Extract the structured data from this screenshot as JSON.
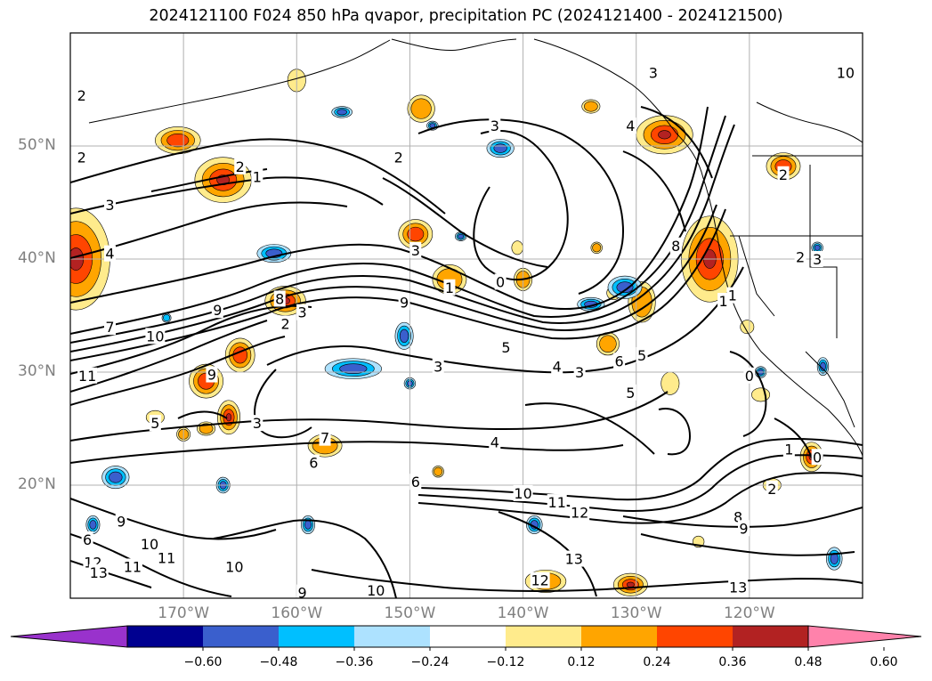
{
  "title": "2024121100 F024 850 hPa qvapor, precipitation PC (2024121400 - 2024121500)",
  "map": {
    "lat_labels": [
      {
        "text": "50°N",
        "lat": 50
      },
      {
        "text": "40°N",
        "lat": 40
      },
      {
        "text": "30°N",
        "lat": 30
      },
      {
        "text": "20°N",
        "lat": 20
      }
    ],
    "lon_labels": [
      {
        "text": "170°W",
        "lon": -170
      },
      {
        "text": "160°W",
        "lon": -160
      },
      {
        "text": "150°W",
        "lon": -150
      },
      {
        "text": "140°W",
        "lon": -140
      },
      {
        "text": "130°W",
        "lon": -130
      },
      {
        "text": "120°W",
        "lon": -120
      }
    ],
    "contour_labels": [
      {
        "t": "3",
        "lon": -128.5,
        "lat": 56.5
      },
      {
        "t": "10",
        "lon": -111.5,
        "lat": 56.5
      },
      {
        "t": "2",
        "lon": -179,
        "lat": 54.5
      },
      {
        "t": "3",
        "lon": -142.5,
        "lat": 51.8
      },
      {
        "t": "4",
        "lon": -130.5,
        "lat": 51.8
      },
      {
        "t": "2",
        "lon": -179,
        "lat": 49
      },
      {
        "t": "2",
        "lon": -165,
        "lat": 48.2
      },
      {
        "t": "1",
        "lon": -163.5,
        "lat": 47.3
      },
      {
        "t": "2",
        "lon": -151,
        "lat": 49
      },
      {
        "t": "2",
        "lon": -117,
        "lat": 47.5
      },
      {
        "t": "3",
        "lon": -176.5,
        "lat": 44.8
      },
      {
        "t": "4",
        "lon": -176.5,
        "lat": 40.5
      },
      {
        "t": "2",
        "lon": -115.5,
        "lat": 40.2
      },
      {
        "t": "3",
        "lon": -114,
        "lat": 40
      },
      {
        "t": "3",
        "lon": -149.5,
        "lat": 40.8
      },
      {
        "t": "1",
        "lon": -146.5,
        "lat": 37.5
      },
      {
        "t": "0",
        "lon": -142,
        "lat": 38
      },
      {
        "t": "8",
        "lon": -126.5,
        "lat": 41.2
      },
      {
        "t": "1",
        "lon": -121.5,
        "lat": 36.8
      },
      {
        "t": "1",
        "lon": -122.3,
        "lat": 36.3
      },
      {
        "t": "9",
        "lon": -167,
        "lat": 35.5
      },
      {
        "t": "8",
        "lon": -161.5,
        "lat": 36.5
      },
      {
        "t": "3",
        "lon": -159.5,
        "lat": 35.3
      },
      {
        "t": "9",
        "lon": -150.5,
        "lat": 36.2
      },
      {
        "t": "7",
        "lon": -176.5,
        "lat": 34
      },
      {
        "t": "10",
        "lon": -172.5,
        "lat": 33.2
      },
      {
        "t": "2",
        "lon": -161,
        "lat": 34.3
      },
      {
        "t": "5",
        "lon": -141.5,
        "lat": 32.2
      },
      {
        "t": "3",
        "lon": -147.5,
        "lat": 30.5
      },
      {
        "t": "4",
        "lon": -137,
        "lat": 30.5
      },
      {
        "t": "3",
        "lon": -135,
        "lat": 30
      },
      {
        "t": "6",
        "lon": -131.5,
        "lat": 31
      },
      {
        "t": "5",
        "lon": -129.5,
        "lat": 31.5
      },
      {
        "t": "5",
        "lon": -130.5,
        "lat": 28.2
      },
      {
        "t": "0",
        "lon": -120,
        "lat": 29.7
      },
      {
        "t": "11",
        "lon": -178.5,
        "lat": 29.7
      },
      {
        "t": "9",
        "lon": -167.5,
        "lat": 29.8
      },
      {
        "t": "3",
        "lon": -163.5,
        "lat": 25.5
      },
      {
        "t": "5",
        "lon": -172.5,
        "lat": 25.5
      },
      {
        "t": "7",
        "lon": -157.5,
        "lat": 24.2
      },
      {
        "t": "4",
        "lon": -142.5,
        "lat": 23.8
      },
      {
        "t": "6",
        "lon": -158.5,
        "lat": 22
      },
      {
        "t": "6",
        "lon": -149.5,
        "lat": 20.3
      },
      {
        "t": "1",
        "lon": -116.5,
        "lat": 23.2
      },
      {
        "t": "0",
        "lon": -114,
        "lat": 22.5
      },
      {
        "t": "10",
        "lon": -140,
        "lat": 19.3
      },
      {
        "t": "11",
        "lon": -137,
        "lat": 18.5
      },
      {
        "t": "12",
        "lon": -135,
        "lat": 17.6
      },
      {
        "t": "8",
        "lon": -121,
        "lat": 17.2
      },
      {
        "t": "9",
        "lon": -120.5,
        "lat": 16.2
      },
      {
        "t": "2",
        "lon": -118,
        "lat": 19.7
      },
      {
        "t": "9",
        "lon": -175.5,
        "lat": 16.8
      },
      {
        "t": "10",
        "lon": -173,
        "lat": 14.8
      },
      {
        "t": "11",
        "lon": -171.5,
        "lat": 13.6
      },
      {
        "t": "11",
        "lon": -174.5,
        "lat": 12.8
      },
      {
        "t": "12",
        "lon": -178,
        "lat": 13.2
      },
      {
        "t": "13",
        "lon": -177.5,
        "lat": 12.3
      },
      {
        "t": "10",
        "lon": -165.5,
        "lat": 12.8
      },
      {
        "t": "13",
        "lon": -135.5,
        "lat": 13.5
      },
      {
        "t": "12",
        "lon": -138.5,
        "lat": 11.6
      },
      {
        "t": "10",
        "lon": -153,
        "lat": 10.7
      },
      {
        "t": "9",
        "lon": -159.5,
        "lat": 10.5
      },
      {
        "t": "13",
        "lon": -121,
        "lat": 11
      },
      {
        "t": "6",
        "lon": -178.5,
        "lat": 15.2
      }
    ],
    "precip_blobs": [
      {
        "lon": -179.5,
        "lat": 40,
        "rx": 3,
        "ry": 4.5,
        "lvl": 4
      },
      {
        "lon": -166.5,
        "lat": 47,
        "rx": 2.5,
        "ry": 2,
        "lvl": 4
      },
      {
        "lon": -170.5,
        "lat": 50.5,
        "rx": 2,
        "ry": 1.2,
        "lvl": 3
      },
      {
        "lon": -149,
        "lat": 53.3,
        "rx": 1.2,
        "ry": 1.2,
        "lvl": 2
      },
      {
        "lon": -160,
        "lat": 55.8,
        "rx": 0.8,
        "ry": 1,
        "lvl": 1
      },
      {
        "lon": -149.5,
        "lat": 42.2,
        "rx": 1.5,
        "ry": 1.3,
        "lvl": 3
      },
      {
        "lon": -146.5,
        "lat": 38.2,
        "rx": 1.5,
        "ry": 1.3,
        "lvl": 2
      },
      {
        "lon": -140,
        "lat": 38.2,
        "rx": 0.8,
        "ry": 1,
        "lvl": 2
      },
      {
        "lon": -161,
        "lat": 36.3,
        "rx": 1.8,
        "ry": 1.3,
        "lvl": 4
      },
      {
        "lon": -165,
        "lat": 31.5,
        "rx": 1.3,
        "ry": 1.5,
        "lvl": 3
      },
      {
        "lon": -168,
        "lat": 29.2,
        "rx": 1.5,
        "ry": 1.5,
        "lvl": 3
      },
      {
        "lon": -166,
        "lat": 26,
        "rx": 1,
        "ry": 1.5,
        "lvl": 4
      },
      {
        "lon": -157.5,
        "lat": 23.5,
        "rx": 1.5,
        "ry": 1,
        "lvl": 2
      },
      {
        "lon": -123.5,
        "lat": 40,
        "rx": 2.5,
        "ry": 3.8,
        "lvl": 4
      },
      {
        "lon": -127.5,
        "lat": 51,
        "rx": 2.5,
        "ry": 1.7,
        "lvl": 4
      },
      {
        "lon": -117,
        "lat": 48.2,
        "rx": 1.5,
        "ry": 1.2,
        "lvl": 3
      },
      {
        "lon": -132.5,
        "lat": 32.5,
        "rx": 1,
        "ry": 1,
        "lvl": 2
      },
      {
        "lon": -129.5,
        "lat": 36.2,
        "rx": 1.2,
        "ry": 1.8,
        "lvl": 2
      },
      {
        "lon": -114.5,
        "lat": 22.5,
        "rx": 1,
        "ry": 1.3,
        "lvl": 4
      },
      {
        "lon": -130.5,
        "lat": 11.2,
        "rx": 1.5,
        "ry": 1,
        "lvl": 4
      },
      {
        "lon": -138,
        "lat": 11.5,
        "rx": 1.8,
        "ry": 1,
        "lvl": 2
      },
      {
        "lon": -127,
        "lat": 29,
        "rx": 0.8,
        "ry": 1,
        "lvl": 1
      },
      {
        "lon": -168,
        "lat": 25,
        "rx": 0.8,
        "ry": 0.6,
        "lvl": 2
      },
      {
        "lon": -172.5,
        "lat": 26,
        "rx": 0.8,
        "ry": 0.6,
        "lvl": 1
      },
      {
        "lon": -119,
        "lat": 28,
        "rx": 0.8,
        "ry": 0.6,
        "lvl": 1
      },
      {
        "lon": -118,
        "lat": 20,
        "rx": 0.8,
        "ry": 0.6,
        "lvl": 1
      },
      {
        "lon": -124.5,
        "lat": 15,
        "rx": 0.5,
        "ry": 0.5,
        "lvl": 1
      },
      {
        "lon": -140.5,
        "lat": 41,
        "rx": 0.5,
        "ry": 0.6,
        "lvl": 1
      },
      {
        "lon": -133.5,
        "lat": 41,
        "rx": 0.5,
        "ry": 0.5,
        "lvl": 2
      },
      {
        "lon": -134,
        "lat": 53.5,
        "rx": 0.8,
        "ry": 0.6,
        "lvl": 2
      },
      {
        "lon": -132,
        "lat": 37,
        "rx": 0.6,
        "ry": 0.6,
        "lvl": 1
      },
      {
        "lon": -120.2,
        "lat": 34,
        "rx": 0.6,
        "ry": 0.6,
        "lvl": 1
      },
      {
        "lon": -147.5,
        "lat": 21.2,
        "rx": 0.5,
        "ry": 0.5,
        "lvl": 2
      },
      {
        "lon": -170,
        "lat": 24.5,
        "rx": 0.6,
        "ry": 0.6,
        "lvl": 2
      }
    ],
    "neg_blobs": [
      {
        "lon": -155,
        "lat": 30.3,
        "rx": 2.5,
        "ry": 0.9,
        "lvl": 3
      },
      {
        "lon": -162,
        "lat": 40.5,
        "rx": 1.5,
        "ry": 0.8,
        "lvl": 3
      },
      {
        "lon": -142,
        "lat": 49.8,
        "rx": 1.2,
        "ry": 0.8,
        "lvl": 3
      },
      {
        "lon": -131,
        "lat": 37.5,
        "rx": 1.5,
        "ry": 1,
        "lvl": 3
      },
      {
        "lon": -134,
        "lat": 36,
        "rx": 1.2,
        "ry": 0.6,
        "lvl": 3
      },
      {
        "lon": -150.5,
        "lat": 33.2,
        "rx": 0.8,
        "ry": 1.2,
        "lvl": 3
      },
      {
        "lon": -176,
        "lat": 20.7,
        "rx": 1.2,
        "ry": 1,
        "lvl": 3
      },
      {
        "lon": -166.5,
        "lat": 20,
        "rx": 0.6,
        "ry": 0.7,
        "lvl": 3
      },
      {
        "lon": -159,
        "lat": 16.5,
        "rx": 0.6,
        "ry": 0.8,
        "lvl": 3
      },
      {
        "lon": -139,
        "lat": 16.5,
        "rx": 0.7,
        "ry": 0.8,
        "lvl": 3
      },
      {
        "lon": -178,
        "lat": 16.5,
        "rx": 0.6,
        "ry": 0.8,
        "lvl": 3
      },
      {
        "lon": -112.5,
        "lat": 13.5,
        "rx": 0.7,
        "ry": 1,
        "lvl": 3
      },
      {
        "lon": -113.5,
        "lat": 30.5,
        "rx": 0.5,
        "ry": 0.8,
        "lvl": 3
      },
      {
        "lon": -156,
        "lat": 53,
        "rx": 0.9,
        "ry": 0.5,
        "lvl": 3
      },
      {
        "lon": -145.5,
        "lat": 42,
        "rx": 0.5,
        "ry": 0.4,
        "lvl": 3
      },
      {
        "lon": -171.5,
        "lat": 34.8,
        "rx": 0.4,
        "ry": 0.4,
        "lvl": 2
      },
      {
        "lon": -119,
        "lat": 30,
        "rx": 0.5,
        "ry": 0.5,
        "lvl": 3
      },
      {
        "lon": -150,
        "lat": 29,
        "rx": 0.5,
        "ry": 0.5,
        "lvl": 3
      },
      {
        "lon": -148,
        "lat": 51.8,
        "rx": 0.5,
        "ry": 0.4,
        "lvl": 3
      },
      {
        "lon": -114,
        "lat": 41,
        "rx": 0.5,
        "ry": 0.5,
        "lvl": 3
      }
    ]
  },
  "colorbar": {
    "colors": [
      "#9932cc",
      "#000090",
      "#3a5fcd",
      "#00bfff",
      "#ade2ff",
      "#ffffff",
      "#ffeb8c",
      "#ffa500",
      "#ff4500",
      "#b22222",
      "#ff82ab"
    ],
    "tick_labels": [
      "−0.60",
      "−0.48",
      "−0.36",
      "−0.24",
      "−0.12",
      "0.12",
      "0.24",
      "0.36",
      "0.48",
      "0.60"
    ]
  }
}
